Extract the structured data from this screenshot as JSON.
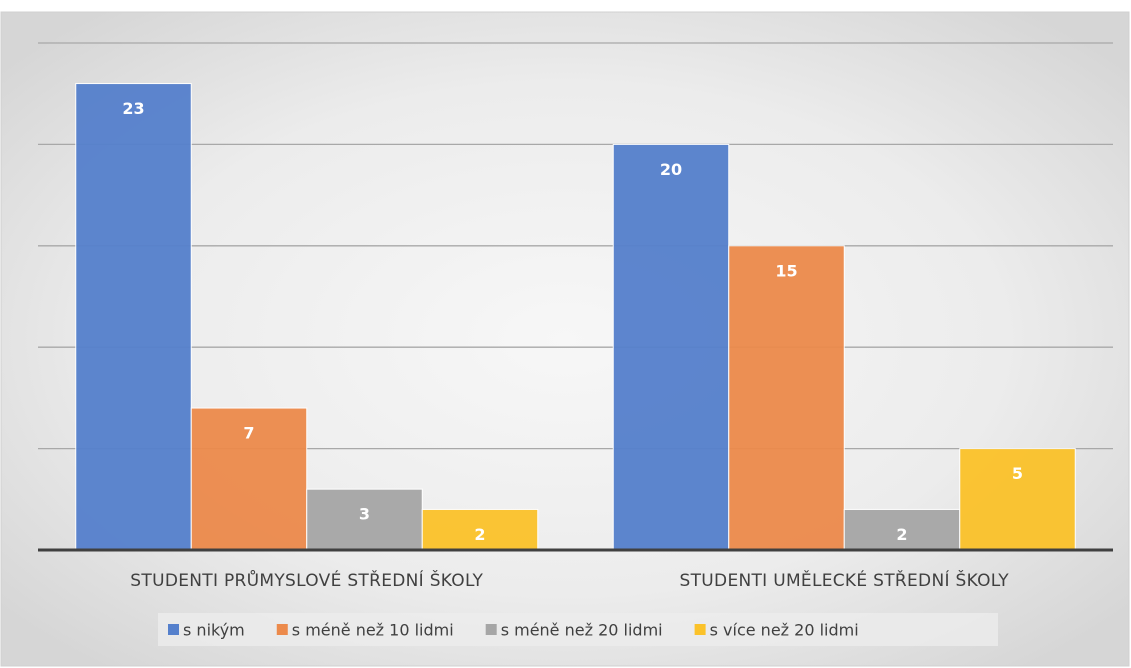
{
  "chart_data": {
    "type": "bar",
    "categories": [
      "STUDENTI PRŮMYSLOVÉ STŘEDNÍ ŠKOLY",
      "STUDENTI UMĚLECKÉ STŘEDNÍ ŠKOLY"
    ],
    "series": [
      {
        "name": "s nikým",
        "color": "#5580cc",
        "values": [
          23,
          20
        ]
      },
      {
        "name": "s méně než 10 lidmi",
        "color": "#ec8a4b",
        "values": [
          7,
          15
        ]
      },
      {
        "name": "s méně než 20 lidmi",
        "color": "#a6a6a6",
        "values": [
          3,
          2
        ]
      },
      {
        "name": "s více než 20 lidmi",
        "color": "#fbc22a",
        "values": [
          2,
          5
        ]
      }
    ],
    "ylim": [
      0,
      25
    ],
    "yticks": [
      0,
      5,
      10,
      15,
      20,
      25
    ],
    "grid": true,
    "legend": "bottom"
  }
}
